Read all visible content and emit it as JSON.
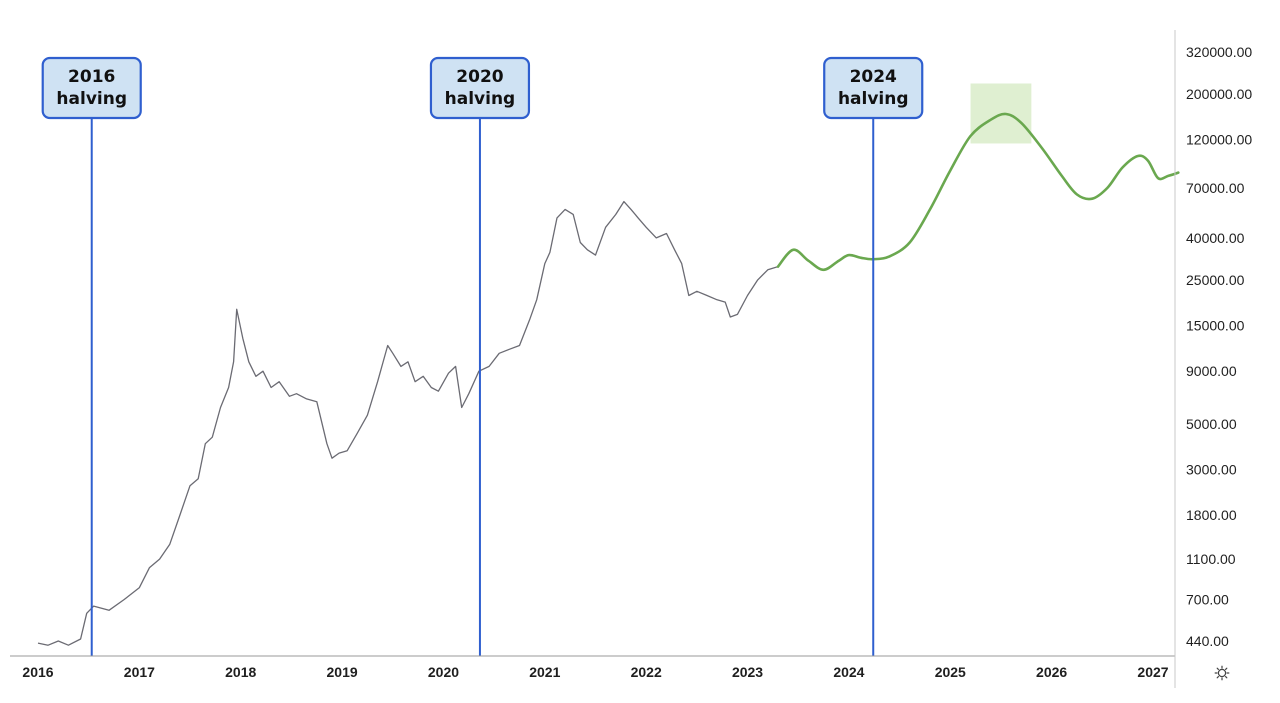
{
  "chart_data": {
    "type": "line",
    "scale": "log",
    "grid": false,
    "colors": {
      "historical": "#6b6b73",
      "projection": "#6aa84f",
      "halving": "#2f5fcf",
      "label_bg": "#cfe2f3",
      "label_border": "#2f5fcf",
      "highlight": "#d9ecc9"
    },
    "y_ticks": [
      "320000.00",
      "200000.00",
      "120000.00",
      "70000.00",
      "40000.00",
      "25000.00",
      "15000.00",
      "9000.00",
      "5000.00",
      "3000.00",
      "1800.00",
      "1100.00",
      "700.00",
      "440.00"
    ],
    "y_tick_values": [
      320000,
      200000,
      120000,
      70000,
      40000,
      25000,
      15000,
      9000,
      5000,
      3000,
      1800,
      1100,
      700,
      440
    ],
    "x_ticks": [
      "2016",
      "2017",
      "2018",
      "2019",
      "2020",
      "2021",
      "2022",
      "2023",
      "2024",
      "2025",
      "2026",
      "2027"
    ],
    "x_tick_values": [
      2016,
      2017,
      2018,
      2019,
      2020,
      2021,
      2022,
      2023,
      2024,
      2025,
      2026,
      2027
    ],
    "xlim": [
      2015.95,
      2027.25
    ],
    "ylim": [
      410,
      440000
    ],
    "halvings": [
      {
        "x": 2016.53,
        "line1": "2016",
        "line2": "halving"
      },
      {
        "x": 2020.36,
        "line1": "2020",
        "line2": "halving"
      },
      {
        "x": 2024.24,
        "line1": "2024",
        "line2": "halving"
      }
    ],
    "highlight_zone": {
      "x": [
        2025.2,
        2025.8
      ],
      "y": [
        115000,
        225000
      ]
    },
    "series": [
      {
        "role": "historical",
        "x": [
          2016.0,
          2016.1,
          2016.2,
          2016.3,
          2016.42,
          2016.48,
          2016.55,
          2016.7,
          2016.85,
          2017.0,
          2017.1,
          2017.2,
          2017.3,
          2017.4,
          2017.5,
          2017.58,
          2017.65,
          2017.72,
          2017.8,
          2017.88,
          2017.93,
          2017.96,
          2018.02,
          2018.08,
          2018.15,
          2018.22,
          2018.3,
          2018.38,
          2018.48,
          2018.55,
          2018.65,
          2018.75,
          2018.85,
          2018.9,
          2018.97,
          2019.05,
          2019.15,
          2019.25,
          2019.35,
          2019.45,
          2019.5,
          2019.58,
          2019.65,
          2019.72,
          2019.8,
          2019.88,
          2019.95,
          2020.05,
          2020.12,
          2020.18,
          2020.25,
          2020.35,
          2020.45,
          2020.55,
          2020.65,
          2020.75,
          2020.85,
          2020.92,
          2021.0,
          2021.05,
          2021.12,
          2021.2,
          2021.28,
          2021.35,
          2021.42,
          2021.5,
          2021.6,
          2021.7,
          2021.78,
          2021.85,
          2021.92,
          2022.0,
          2022.1,
          2022.2,
          2022.28,
          2022.35,
          2022.42,
          2022.5,
          2022.6,
          2022.7,
          2022.78,
          2022.83,
          2022.9,
          2023.0,
          2023.1,
          2023.2,
          2023.3
        ],
        "y": [
          430,
          420,
          440,
          420,
          450,
          600,
          650,
          620,
          700,
          800,
          1000,
          1100,
          1300,
          1800,
          2500,
          2700,
          4000,
          4300,
          6000,
          7500,
          10000,
          18000,
          13000,
          10000,
          8500,
          9000,
          7500,
          8000,
          6800,
          7000,
          6600,
          6400,
          4000,
          3400,
          3600,
          3700,
          4500,
          5500,
          8000,
          12000,
          11000,
          9500,
          10000,
          8000,
          8500,
          7500,
          7200,
          8800,
          9500,
          6000,
          7000,
          9000,
          9500,
          11000,
          11500,
          12000,
          16000,
          20000,
          30000,
          34000,
          50000,
          55000,
          52000,
          38000,
          35000,
          33000,
          45000,
          52000,
          60000,
          55000,
          50000,
          45000,
          40000,
          42000,
          35000,
          30000,
          21000,
          22000,
          21000,
          20000,
          19500,
          16500,
          17000,
          21000,
          25000,
          28000,
          29000
        ]
      },
      {
        "role": "projection",
        "x": [
          2023.3,
          2023.45,
          2023.6,
          2023.75,
          2023.9,
          2024.0,
          2024.12,
          2024.24,
          2024.4,
          2024.6,
          2024.8,
          2025.0,
          2025.2,
          2025.4,
          2025.55,
          2025.7,
          2025.9,
          2026.1,
          2026.25,
          2026.4,
          2026.55,
          2026.7,
          2026.85,
          2026.95,
          2027.05,
          2027.15,
          2027.25
        ],
        "y": [
          29000,
          35000,
          31000,
          28000,
          31000,
          33000,
          32000,
          31500,
          32500,
          38000,
          55000,
          85000,
          125000,
          150000,
          160000,
          145000,
          110000,
          80000,
          65000,
          62000,
          70000,
          88000,
          100000,
          95000,
          78000,
          80000,
          83000
        ]
      }
    ]
  }
}
